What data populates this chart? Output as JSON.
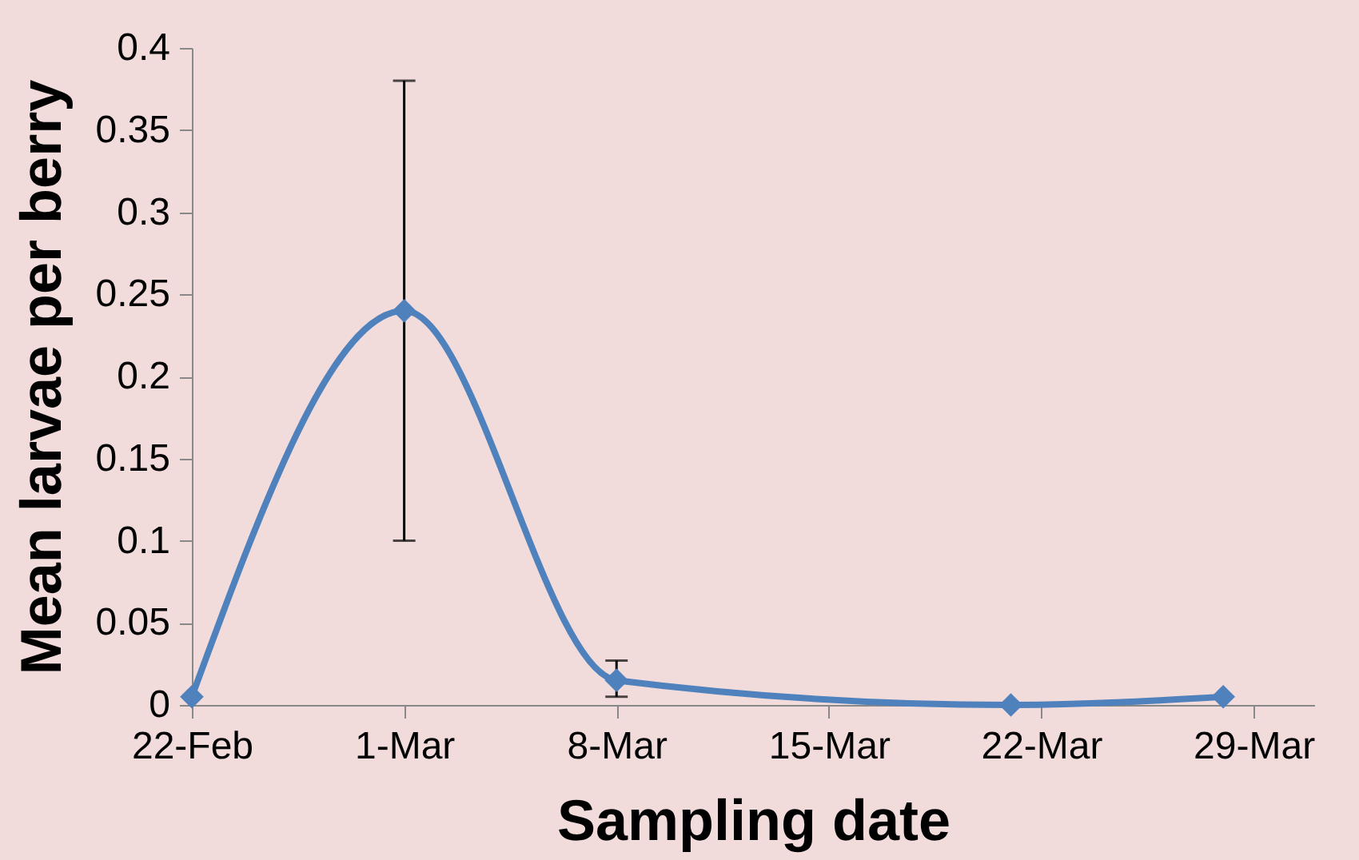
{
  "chart_data": {
    "type": "line",
    "xlabel": "Sampling date",
    "ylabel": "Mean larvae per berry",
    "x": [
      "--02-22",
      "--03-01",
      "--03-08",
      "--03-21",
      "--03-28"
    ],
    "series": [
      {
        "color": "#4f81bd",
        "values": [
          0.005,
          0.24,
          0.015,
          0,
          0.005
        ],
        "errors": [
          null,
          [
            0.1,
            0.38
          ],
          [
            0.005,
            0.027
          ],
          null,
          null
        ]
      }
    ],
    "xlim": [
      "--02-22",
      "--03-31"
    ],
    "xticks": [
      {
        "value": "--02-22",
        "label": "22-Feb"
      },
      {
        "value": "--03-01",
        "label": "1-Mar"
      },
      {
        "value": "--03-08",
        "label": "8-Mar"
      },
      {
        "value": "--03-15",
        "label": "15-Mar"
      },
      {
        "value": "--03-22",
        "label": "22-Mar"
      },
      {
        "value": "--03-29",
        "label": "29-Mar"
      }
    ],
    "ylim": [
      0,
      0.4
    ],
    "yticks": [
      0,
      0.05,
      0.1,
      0.15,
      0.2,
      0.25,
      0.3,
      0.35,
      0.4
    ],
    "grid": false,
    "marker": "diamond",
    "line_style": "solid"
  }
}
